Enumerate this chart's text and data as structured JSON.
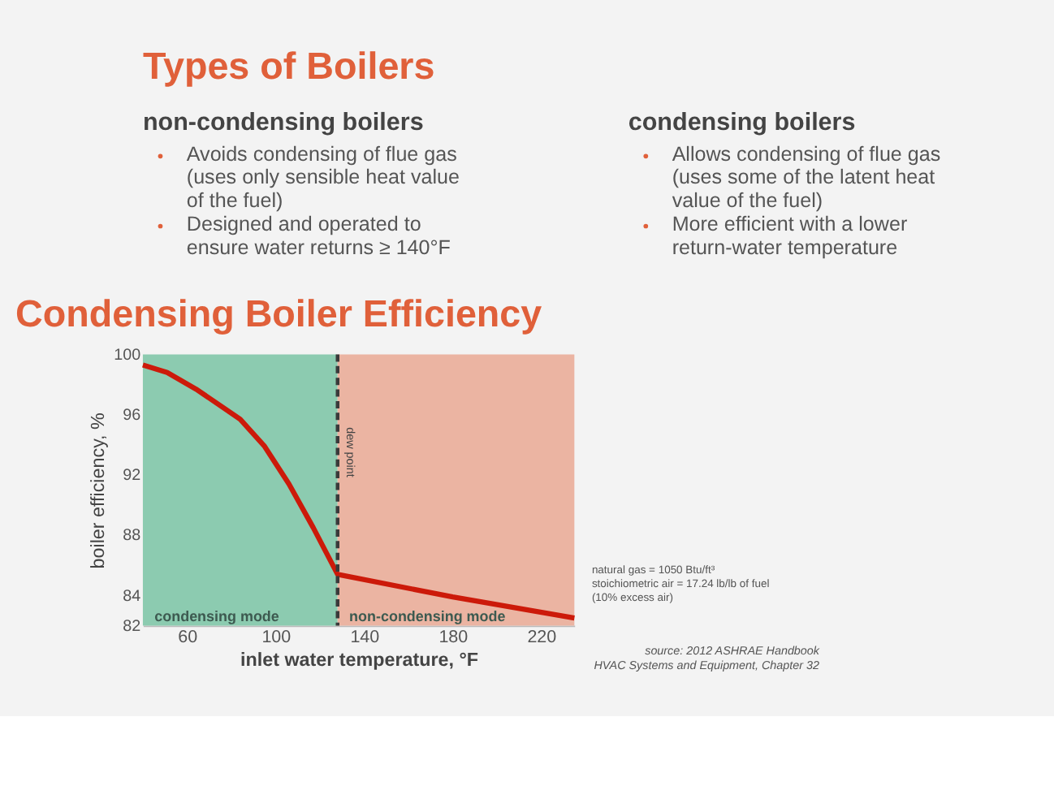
{
  "chart_data": {
    "type": "line",
    "title": "Condensing Boiler Efficiency",
    "xlabel": "inlet water temperature, °F",
    "ylabel": "boiler efficiency, %",
    "x": [
      40,
      51,
      64,
      84,
      95,
      106,
      117,
      128,
      180,
      235
    ],
    "series": [
      {
        "color": "#cc1a0a",
        "values": [
          99.3,
          98.8,
          97.7,
          95.7,
          93.9,
          91.4,
          88.5,
          85.4,
          83.9,
          82.5
        ]
      }
    ],
    "xlim": [
      40,
      235
    ],
    "xticks": [
      60,
      100,
      140,
      180,
      220
    ],
    "ylim": [
      82,
      100
    ],
    "yticks": [
      82,
      84,
      88,
      92,
      96,
      100
    ],
    "grid": false,
    "marker": "none",
    "line_style": "solid",
    "bands": [
      {
        "axis": "x",
        "from": 40,
        "to": 128,
        "label": "condensing mode",
        "color": "#8ccbb0"
      },
      {
        "axis": "x",
        "from": 128,
        "to": 235,
        "label": "non-condensing mode",
        "color": "#ebb4a2"
      }
    ],
    "ref_lines": [
      {
        "axis": "x",
        "value": 128,
        "label": "dew point",
        "color": "#3a3a3a",
        "line_style": "dashed"
      }
    ],
    "annotations": [
      "Types of Boilers",
      "non-condensing boilers",
      "Avoids condensing of flue gas\n(uses only sensible heat value\nof the fuel)",
      "Designed and operated to\nensure water returns ≥ 140°F",
      "condensing boilers",
      "Allows condensing of flue gas\n(uses some of the latent heat\nvalue of the fuel)",
      "More efficient with a lower\nreturn-water temperature",
      "natural gas = 1050 Btu/ft³\nstoichiometric air = 17.24 lb/lb of fuel\n(10% excess air)",
      "source: 2012 ASHRAE Handbook\nHVAC Systems and Equipment, Chapter 32"
    ]
  }
}
